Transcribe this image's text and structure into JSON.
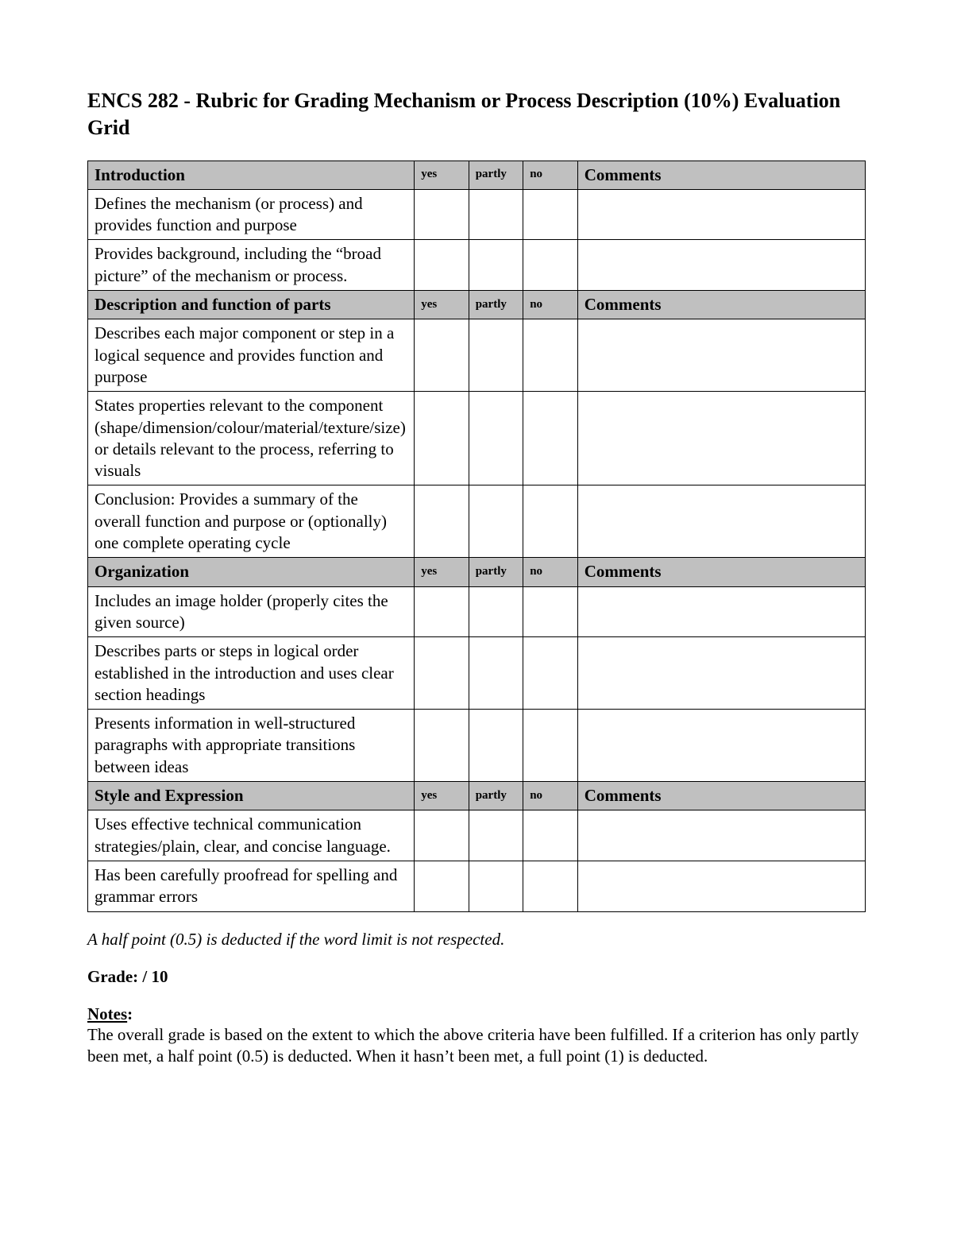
{
  "title": "ENCS 282 - Rubric for Grading Mechanism or Process Description  (10%) Evaluation Grid",
  "columns": {
    "yes": "yes",
    "partly": "partly",
    "no": "no",
    "comments": "Comments"
  },
  "sections": [
    {
      "header": "Introduction",
      "rows": [
        "Defines the mechanism (or process) and provides function and purpose",
        "Provides background, including the “broad picture” of the mechanism or process."
      ]
    },
    {
      "header": "Description and function of parts",
      "rows": [
        "Describes each major component or step in a logical sequence and provides function and purpose",
        "States properties relevant to the component (shape/dimension/colour/material/texture/size) or details relevant to the process, referring to visuals",
        "Conclusion: Provides a summary of the overall function and purpose or (optionally) one complete operating cycle"
      ]
    },
    {
      "header": "Organization",
      "rows": [
        "Includes an image holder (properly cites the given source)",
        "Describes parts or steps in logical order established in the introduction and uses clear section headings",
        "Presents information in well-structured paragraphs with appropriate transitions between ideas"
      ]
    },
    {
      "header": "Style and Expression",
      "rows": [
        "Uses effective technical communication strategies/plain, clear, and concise language.",
        "Has been carefully proofread for spelling and grammar errors"
      ]
    }
  ],
  "deduction_note": "A half point (0.5) is deducted if the word limit is not respected.",
  "grade_label": "Grade:  / 10",
  "notes_label": "Notes",
  "notes_colon": ":",
  "notes_body": "The overall grade is based on the extent to which the above criteria have been fulfilled. If a criterion has only partly been met, a half point (0.5) is deducted.  When it hasn’t been met, a full point (1) is deducted.",
  "styles": {
    "page_bg": "#ffffff",
    "text_color": "#000000",
    "header_bg": "#c0c0c0",
    "border_color": "#000000",
    "title_fontsize": 26,
    "body_fontsize": 21,
    "small_header_fontsize": 15,
    "font_family": "Times New Roman"
  }
}
